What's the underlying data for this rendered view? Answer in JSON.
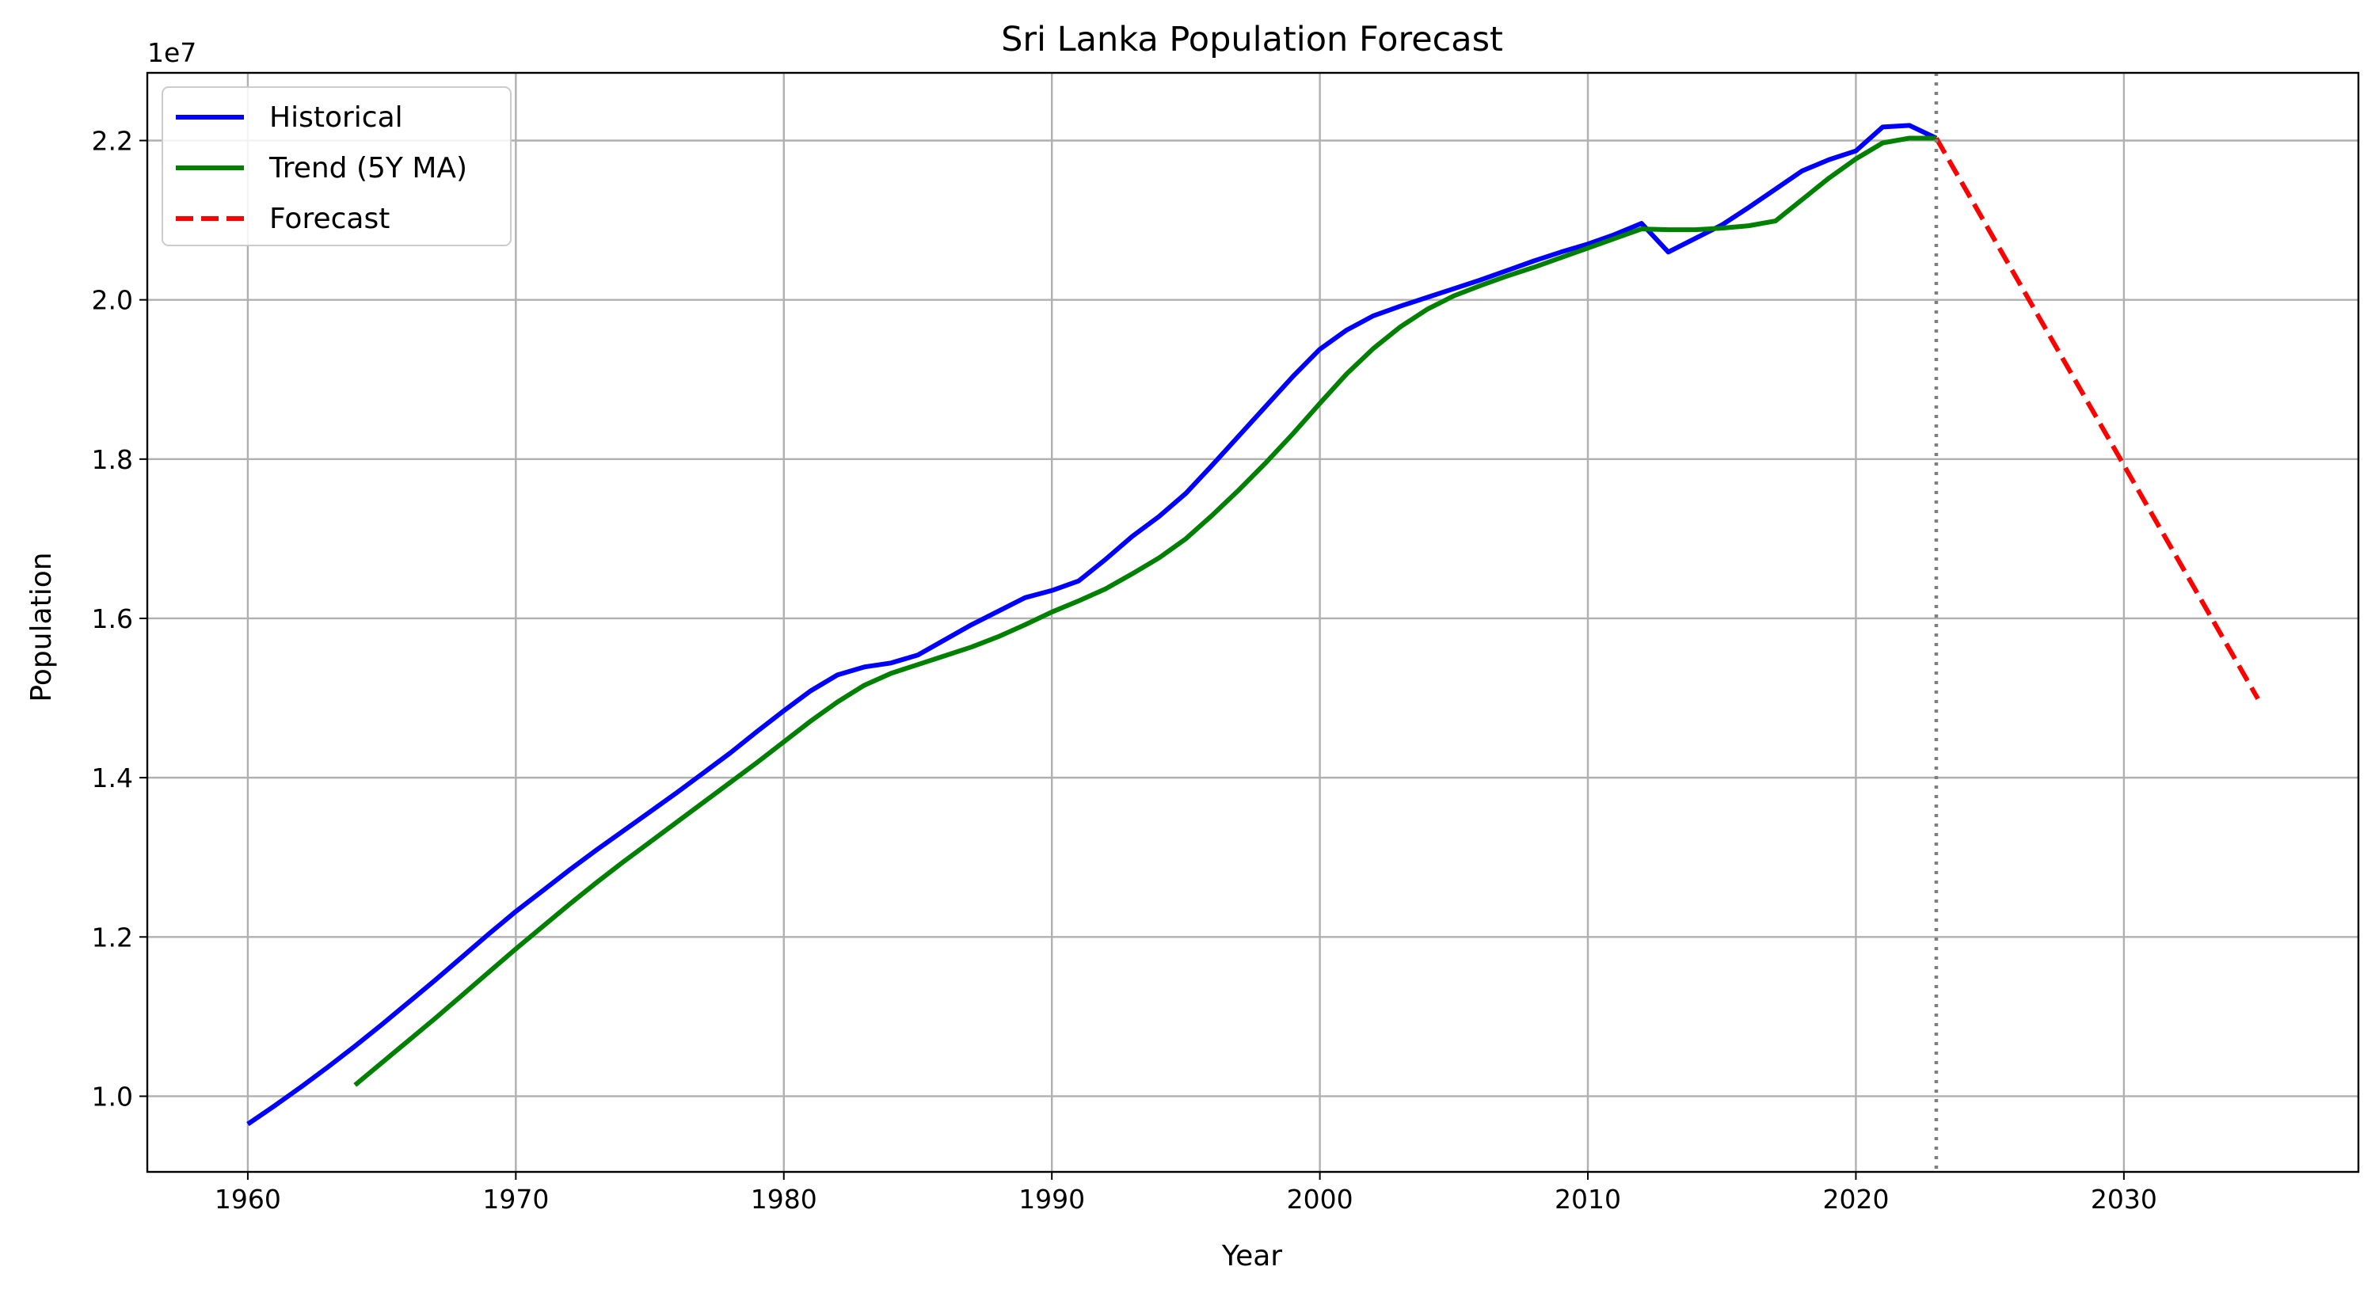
{
  "chart_data": {
    "type": "line",
    "title": "Sri Lanka Population Forecast",
    "xlabel": "Year",
    "ylabel": "Population",
    "y_offset_label": "1e7",
    "xlim": [
      1956.25,
      2038.75
    ],
    "ylim": [
      9050000,
      22850000
    ],
    "x_ticks": [
      1960,
      1970,
      1980,
      1990,
      2000,
      2010,
      2020,
      2030
    ],
    "x_tick_labels": [
      "1960",
      "1970",
      "1980",
      "1990",
      "2000",
      "2010",
      "2020",
      "2030"
    ],
    "y_ticks": [
      10000000,
      12000000,
      14000000,
      16000000,
      18000000,
      20000000,
      22000000
    ],
    "y_tick_labels": [
      "1.0",
      "1.2",
      "1.4",
      "1.6",
      "1.8",
      "2.0",
      "2.2"
    ],
    "grid": true,
    "legend_position": "top-left",
    "vline": {
      "x": 2023,
      "color": "#808080",
      "style": "dotted"
    },
    "series": [
      {
        "name": "Historical",
        "color": "#0000ff",
        "style": "solid",
        "x": [
          1960,
          1961,
          1962,
          1963,
          1964,
          1965,
          1966,
          1967,
          1968,
          1969,
          1970,
          1971,
          1972,
          1973,
          1974,
          1975,
          1976,
          1977,
          1978,
          1979,
          1980,
          1981,
          1982,
          1983,
          1984,
          1985,
          1986,
          1987,
          1988,
          1989,
          1990,
          1991,
          1992,
          1993,
          1994,
          1995,
          1996,
          1997,
          1998,
          1999,
          2000,
          2001,
          2002,
          2003,
          2004,
          2005,
          2006,
          2007,
          2008,
          2009,
          2010,
          2011,
          2012,
          2013,
          2014,
          2015,
          2016,
          2017,
          2018,
          2019,
          2020,
          2021,
          2022,
          2023
        ],
        "y": [
          9650000,
          9880000,
          10120000,
          10370000,
          10630000,
          10900000,
          11180000,
          11460000,
          11750000,
          12040000,
          12320000,
          12580000,
          12840000,
          13090000,
          13330000,
          13570000,
          13810000,
          14060000,
          14310000,
          14580000,
          14840000,
          15090000,
          15290000,
          15390000,
          15440000,
          15540000,
          15730000,
          15920000,
          16090000,
          16260000,
          16350000,
          16470000,
          16740000,
          17030000,
          17280000,
          17570000,
          17930000,
          18300000,
          18670000,
          19040000,
          19380000,
          19620000,
          19800000,
          19920000,
          20030000,
          20140000,
          20250000,
          20370000,
          20490000,
          20600000,
          20700000,
          20820000,
          20960000,
          20600000,
          20770000,
          20940000,
          21160000,
          21390000,
          21620000,
          21760000,
          21870000,
          22170000,
          22190000,
          22030000
        ]
      },
      {
        "name": "Trend (5Y MA)",
        "color": "#008000",
        "style": "solid",
        "x": [
          1964,
          1965,
          1966,
          1967,
          1968,
          1969,
          1970,
          1971,
          1972,
          1973,
          1974,
          1975,
          1976,
          1977,
          1978,
          1979,
          1980,
          1981,
          1982,
          1983,
          1984,
          1985,
          1986,
          1987,
          1988,
          1989,
          1990,
          1991,
          1992,
          1993,
          1994,
          1995,
          1996,
          1997,
          1998,
          1999,
          2000,
          2001,
          2002,
          2003,
          2004,
          2005,
          2006,
          2007,
          2008,
          2009,
          2010,
          2011,
          2012,
          2013,
          2014,
          2015,
          2016,
          2017,
          2018,
          2019,
          2020,
          2021,
          2022,
          2023
        ],
        "y": [
          10140000,
          10420000,
          10700000,
          10980000,
          11270000,
          11560000,
          11850000,
          12130000,
          12410000,
          12680000,
          12940000,
          13190000,
          13440000,
          13690000,
          13940000,
          14190000,
          14450000,
          14710000,
          14950000,
          15160000,
          15310000,
          15420000,
          15530000,
          15640000,
          15770000,
          15920000,
          16080000,
          16220000,
          16370000,
          16560000,
          16760000,
          17000000,
          17300000,
          17620000,
          17960000,
          18320000,
          18700000,
          19070000,
          19390000,
          19660000,
          19880000,
          20050000,
          20180000,
          20300000,
          20410000,
          20530000,
          20650000,
          20770000,
          20890000,
          20880000,
          20880000,
          20900000,
          20930000,
          20990000,
          21260000,
          21530000,
          21770000,
          21970000,
          22030000,
          22030000
        ]
      },
      {
        "name": "Forecast",
        "color": "#ff0000",
        "style": "dashed",
        "x": [
          2023,
          2035
        ],
        "y": [
          22030000,
          14990000
        ]
      }
    ]
  }
}
